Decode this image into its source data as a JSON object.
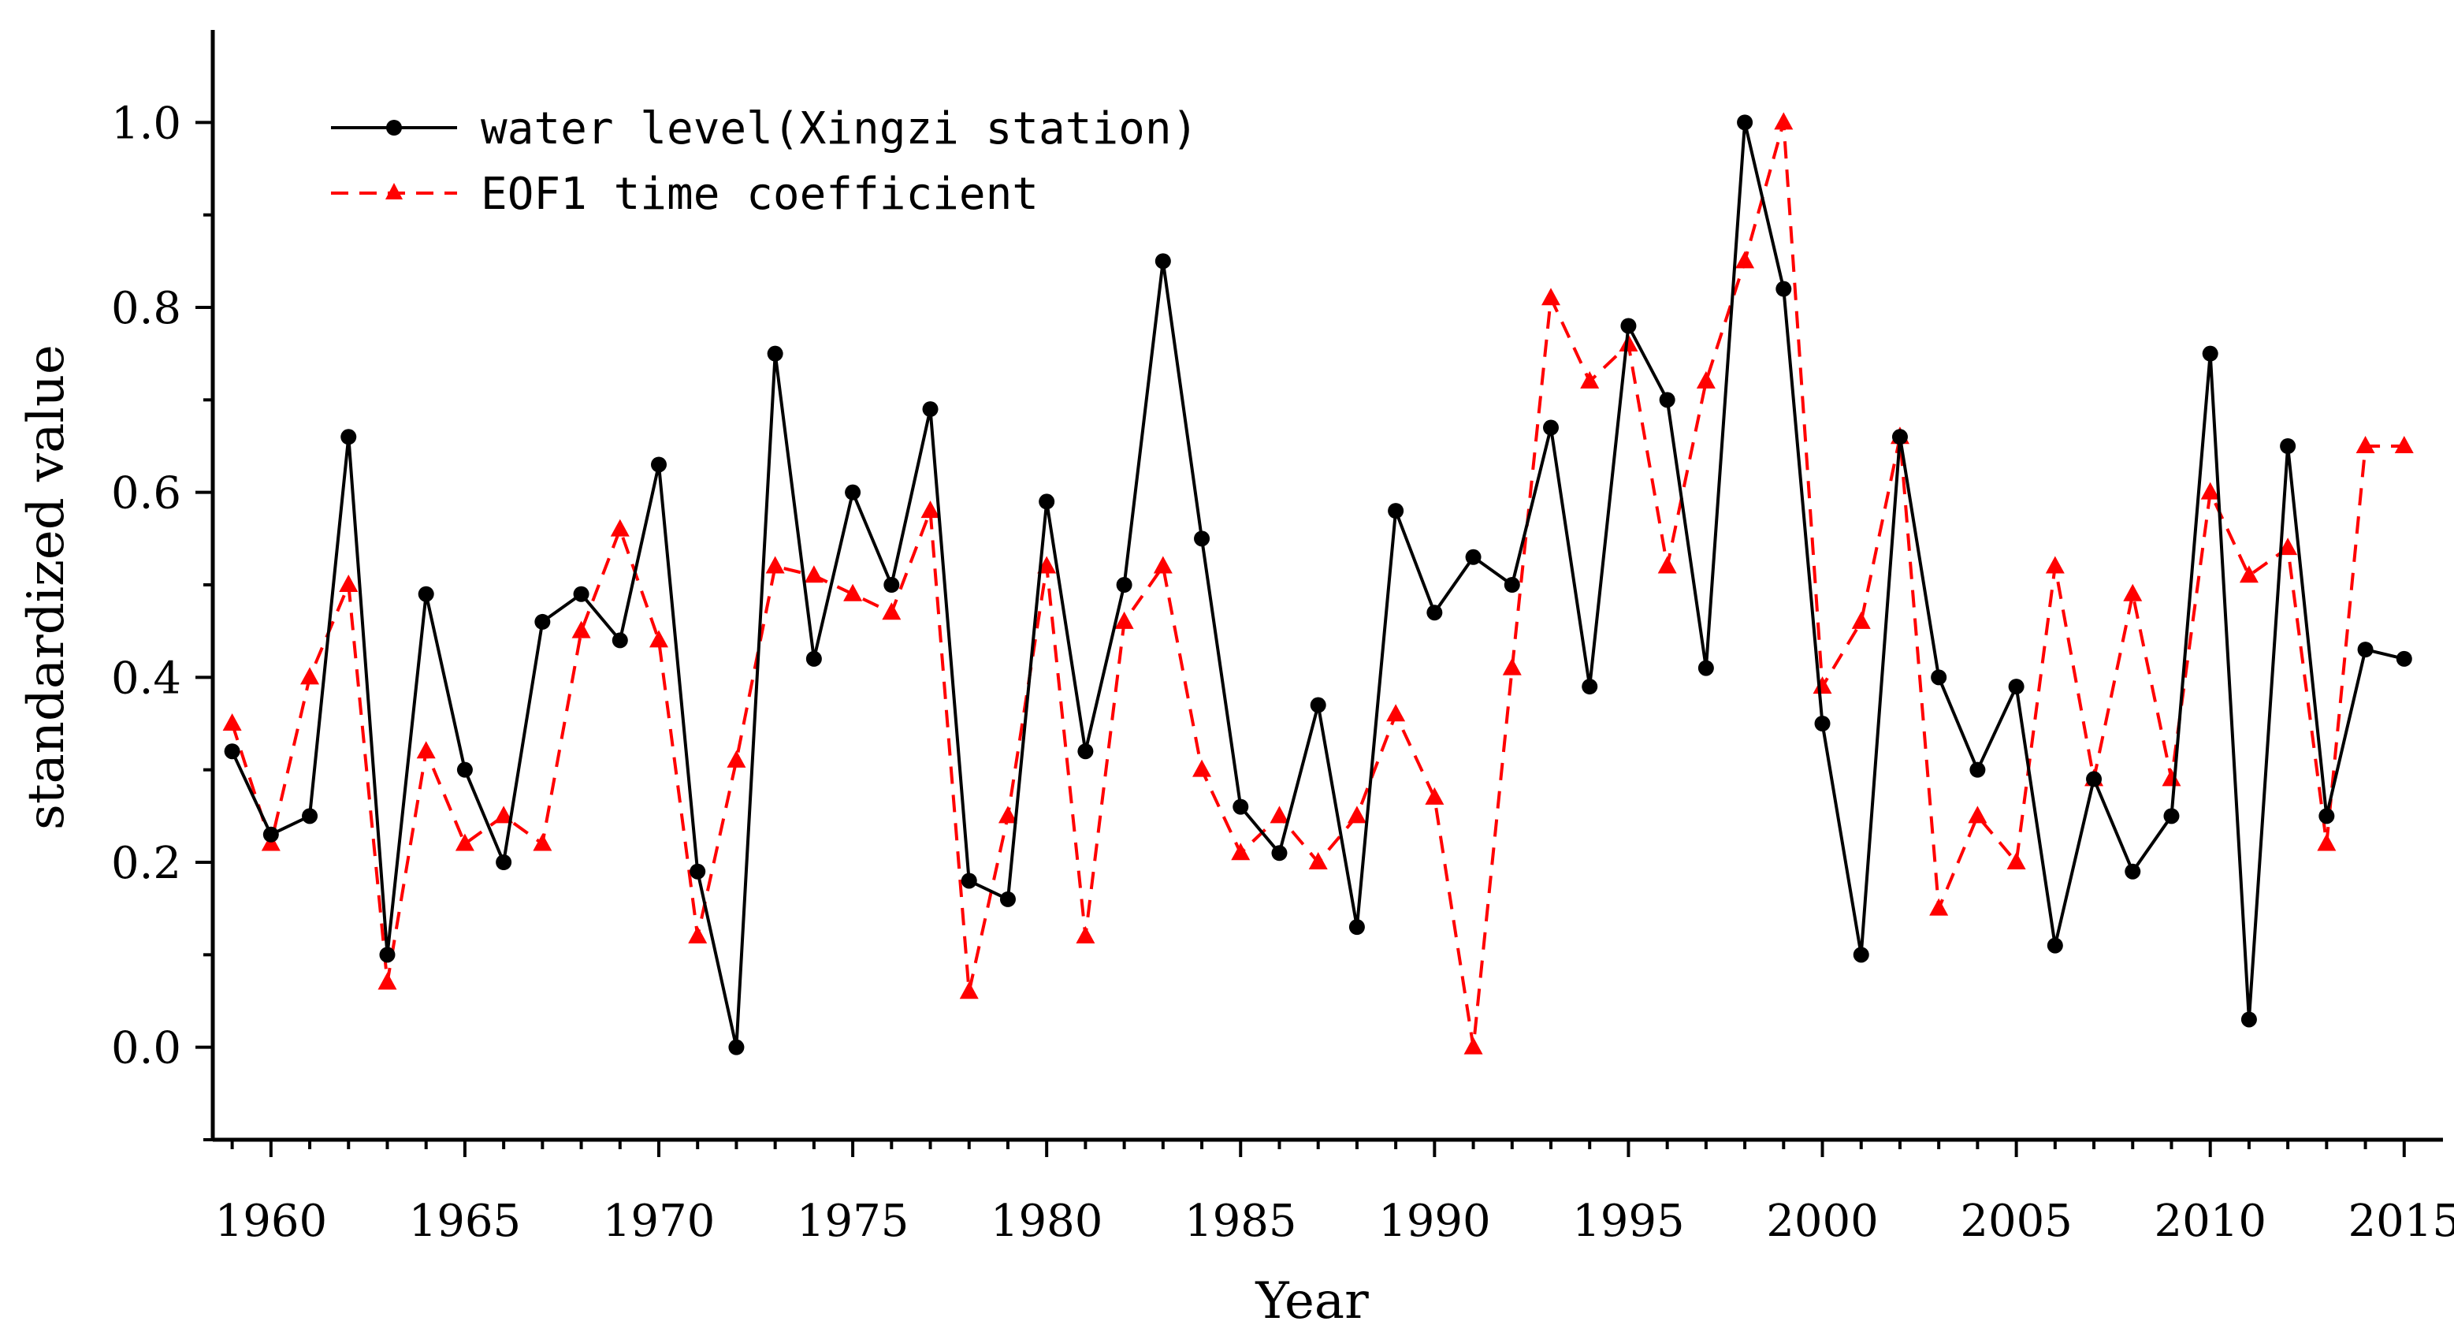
{
  "chart_data": {
    "type": "line",
    "title": "",
    "xlabel": "Year",
    "ylabel": "standardized value",
    "xlim": [
      1958.5,
      2016.0
    ],
    "ylim": [
      -0.1,
      1.1
    ],
    "x_ticks": [
      "1960",
      "1965",
      "1970",
      "1975",
      "1980",
      "1985",
      "1990",
      "1995",
      "2000",
      "2005",
      "2010",
      "2015"
    ],
    "y_ticks": [
      "0.0",
      "0.2",
      "0.4",
      "0.6",
      "0.8",
      "1.0"
    ],
    "legend_position": "top-left",
    "grid": false,
    "x": [
      1959,
      1960,
      1961,
      1962,
      1963,
      1964,
      1965,
      1966,
      1967,
      1968,
      1969,
      1970,
      1971,
      1972,
      1973,
      1974,
      1975,
      1976,
      1977,
      1978,
      1979,
      1980,
      1981,
      1982,
      1983,
      1984,
      1985,
      1986,
      1987,
      1988,
      1989,
      1990,
      1991,
      1992,
      1993,
      1994,
      1995,
      1996,
      1997,
      1998,
      1999,
      2000,
      2001,
      2002,
      2003,
      2004,
      2005,
      2006,
      2007,
      2008,
      2009,
      2010,
      2011,
      2012,
      2013,
      2014,
      2015
    ],
    "series": [
      {
        "name": "water level(Xingzi station)",
        "color": "#000000",
        "marker": "circle",
        "line_style": "solid",
        "values": [
          0.32,
          0.23,
          0.25,
          0.66,
          0.1,
          0.49,
          0.3,
          0.2,
          0.46,
          0.49,
          0.44,
          0.63,
          0.19,
          0.0,
          0.75,
          0.42,
          0.6,
          0.5,
          0.69,
          0.18,
          0.16,
          0.59,
          0.32,
          0.5,
          0.85,
          0.55,
          0.26,
          0.21,
          0.37,
          0.13,
          0.58,
          0.47,
          0.53,
          0.5,
          0.67,
          0.39,
          0.78,
          0.7,
          0.41,
          1.0,
          0.82,
          0.35,
          0.1,
          0.66,
          0.4,
          0.3,
          0.39,
          0.11,
          0.29,
          0.19,
          0.25,
          0.75,
          0.03,
          0.65,
          0.25,
          0.43,
          0.42
        ]
      },
      {
        "name": "EOF1 time coefficient",
        "color": "#ff0000",
        "marker": "triangle",
        "line_style": "dashed",
        "values": [
          0.35,
          0.22,
          0.4,
          0.5,
          0.07,
          0.32,
          0.22,
          0.25,
          0.22,
          0.45,
          0.56,
          0.44,
          0.12,
          0.31,
          0.52,
          0.51,
          0.49,
          0.47,
          0.58,
          0.06,
          0.25,
          0.52,
          0.12,
          0.46,
          0.52,
          0.3,
          0.21,
          0.25,
          0.2,
          0.25,
          0.36,
          0.27,
          0.0,
          0.41,
          0.81,
          0.72,
          0.76,
          0.52,
          0.72,
          0.85,
          1.0,
          0.39,
          0.46,
          0.66,
          0.15,
          0.25,
          0.2,
          0.52,
          0.29,
          0.49,
          0.29,
          0.6,
          0.51,
          0.54,
          0.22,
          0.65,
          0.65
        ]
      }
    ]
  }
}
